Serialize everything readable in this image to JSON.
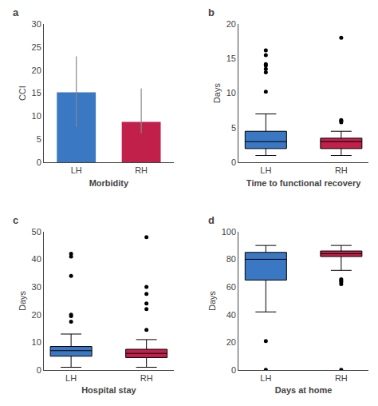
{
  "chart_data": [
    {
      "type": "bar",
      "xlabel": "Morbidity",
      "ylabel": "CCI",
      "annotations": [
        "a"
      ],
      "categories": [
        "LH",
        "RH"
      ],
      "values": [
        15.2,
        8.8
      ],
      "colors": [
        "#3B78C3",
        "#C0204A"
      ],
      "error_low": [
        7.5,
        2.5
      ],
      "error_high": [
        7.8,
        7.2
      ],
      "ylim": [
        0,
        30
      ],
      "yticks": [
        0,
        5,
        10,
        15,
        20,
        25,
        30
      ],
      "grid": false
    },
    {
      "type": "box",
      "xlabel": "Time to functional recovery",
      "ylabel": "Days",
      "annotations": [
        "b"
      ],
      "categories": [
        "LH",
        "RH"
      ],
      "colors": [
        "#3B78C3",
        "#C0204A"
      ],
      "q1": [
        2.0,
        2.0
      ],
      "median": [
        3.0,
        3.0
      ],
      "q3": [
        4.5,
        3.5
      ],
      "whisker_low": [
        1.0,
        1.0
      ],
      "whisker_high": [
        7.0,
        4.5
      ],
      "outliers": [
        [
          10.2,
          13.0,
          13.5,
          14.0,
          14.2,
          15.5,
          16.2
        ],
        [
          5.8,
          6.0,
          6.1,
          18.0
        ]
      ],
      "ylim": [
        0,
        20
      ],
      "yticks": [
        0,
        5,
        10,
        15,
        20
      ],
      "grid": false
    },
    {
      "type": "box",
      "xlabel": "Hospital stay",
      "ylabel": "Days",
      "annotations": [
        "c"
      ],
      "categories": [
        "LH",
        "RH"
      ],
      "colors": [
        "#3B78C3",
        "#C0204A"
      ],
      "q1": [
        5.0,
        4.5
      ],
      "median": [
        7.0,
        6.0
      ],
      "q3": [
        8.5,
        7.5
      ],
      "whisker_low": [
        1.0,
        1.0
      ],
      "whisker_high": [
        13.0,
        11.0
      ],
      "outliers": [
        [
          17.5,
          19.5,
          20.0,
          34.0,
          41.0,
          42.0
        ],
        [
          14.5,
          22.0,
          24.0,
          27.5,
          30.0,
          48.0
        ]
      ],
      "ylim": [
        0,
        50
      ],
      "yticks": [
        0,
        10,
        20,
        30,
        40,
        50
      ],
      "grid": false
    },
    {
      "type": "box",
      "xlabel": "Days at home",
      "ylabel": "Days",
      "annotations": [
        "d"
      ],
      "categories": [
        "LH",
        "RH"
      ],
      "colors": [
        "#3B78C3",
        "#C0204A"
      ],
      "q1": [
        65.0,
        82.0
      ],
      "median": [
        80.0,
        84.0
      ],
      "q3": [
        85.0,
        86.0
      ],
      "whisker_low": [
        42.0,
        72.0
      ],
      "whisker_high": [
        90.0,
        90.0
      ],
      "outliers": [
        [
          21.0,
          0.2
        ],
        [
          62.0,
          63.5,
          64.5,
          65.5,
          0.2
        ]
      ],
      "ylim": [
        0,
        100
      ],
      "yticks": [
        0,
        20,
        40,
        60,
        80,
        100
      ],
      "grid": false
    }
  ]
}
